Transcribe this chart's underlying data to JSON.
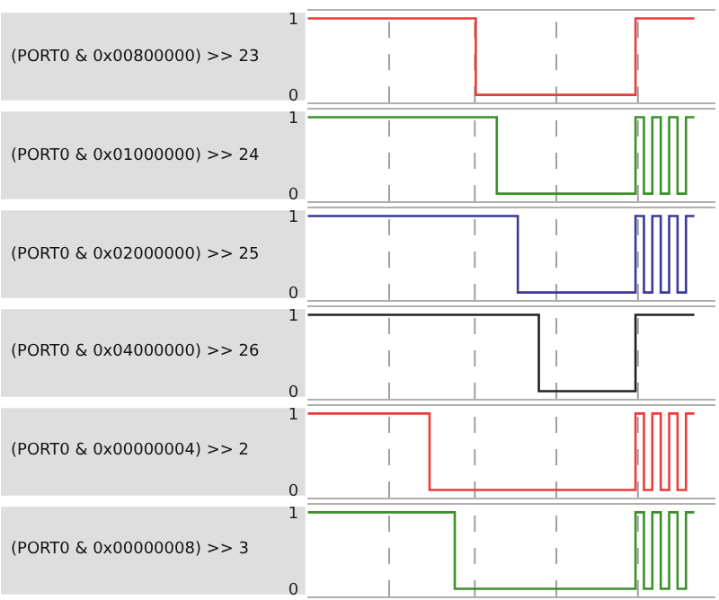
{
  "chart_data": [
    {
      "type": "step",
      "ylabel": "(PORT0 & 0x00800000) >> 23",
      "ylim": [
        -0.1,
        1.1
      ],
      "yticks": [
        0,
        1
      ],
      "tick_labels": "y",
      "line_style": "solid",
      "categories": [
        null,
        null,
        null,
        null,
        null,
        null,
        null,
        null,
        null,
        null,
        null,
        null,
        null,
        null,
        null,
        null,
        null,
        null,
        null,
        null,
        null,
        null,
        null,
        null,
        null,
        null,
        null,
        null,
        null,
        null,
        null,
        null,
        null,
        null,
        null,
        null,
        null,
        null,
        null,
        null,
        null,
        null,
        null,
        null,
        null,
        null,
        null,
        null,
        null,
        null,
        null,
        null,
        null,
        null,
        null,
        null,
        null,
        null,
        null,
        null,
        null,
        null,
        null,
        null,
        null,
        null,
        null,
        null,
        null,
        null,
        null,
        null,
        null,
        null,
        null,
        null,
        null,
        null,
        null,
        null,
        null,
        null,
        null,
        null,
        null,
        null,
        null,
        null,
        null,
        null,
        null,
        null,
        null
      ],
      "series": [
        {
          "color": "#ee3a3a",
          "values": [
            1,
            1,
            1,
            1,
            1,
            1,
            1,
            1,
            1,
            1,
            1,
            1,
            1,
            1,
            1,
            1,
            1,
            1,
            1,
            1,
            1,
            1,
            1,
            1,
            1,
            1,
            1,
            1,
            1,
            1,
            1,
            1,
            1,
            1,
            1,
            1,
            1,
            1,
            1,
            1,
            0,
            0,
            0,
            0,
            0,
            0,
            0,
            0,
            0,
            0,
            0,
            0,
            0,
            0,
            0,
            0,
            0,
            0,
            0,
            0,
            0,
            0,
            0,
            0,
            0,
            0,
            0,
            0,
            0,
            0,
            0,
            0,
            0,
            0,
            0,
            0,
            0,
            0,
            1,
            1,
            1,
            1,
            1,
            1,
            1,
            1,
            1,
            1,
            1,
            1,
            1,
            1,
            1
          ]
        }
      ]
    },
    {
      "type": "step",
      "ylabel": "(PORT0 & 0x01000000) >> 24",
      "ylim": [
        -0.1,
        1.1
      ],
      "yticks": [
        0,
        1
      ],
      "tick_labels": "y",
      "line_style": "solid",
      "categories": [
        null,
        null,
        null,
        null,
        null,
        null,
        null,
        null,
        null,
        null,
        null,
        null,
        null,
        null,
        null,
        null,
        null,
        null,
        null,
        null,
        null,
        null,
        null,
        null,
        null,
        null,
        null,
        null,
        null,
        null,
        null,
        null,
        null,
        null,
        null,
        null,
        null,
        null,
        null,
        null,
        null,
        null,
        null,
        null,
        null,
        null,
        null,
        null,
        null,
        null,
        null,
        null,
        null,
        null,
        null,
        null,
        null,
        null,
        null,
        null,
        null,
        null,
        null,
        null,
        null,
        null,
        null,
        null,
        null,
        null,
        null,
        null,
        null,
        null,
        null,
        null,
        null,
        null,
        null,
        null,
        null,
        null,
        null,
        null,
        null,
        null,
        null,
        null,
        null,
        null,
        null,
        null,
        null
      ],
      "series": [
        {
          "color": "#3a8f2a",
          "values": [
            1,
            1,
            1,
            1,
            1,
            1,
            1,
            1,
            1,
            1,
            1,
            1,
            1,
            1,
            1,
            1,
            1,
            1,
            1,
            1,
            1,
            1,
            1,
            1,
            1,
            1,
            1,
            1,
            1,
            1,
            1,
            1,
            1,
            1,
            1,
            1,
            1,
            1,
            1,
            1,
            1,
            1,
            1,
            1,
            1,
            0,
            0,
            0,
            0,
            0,
            0,
            0,
            0,
            0,
            0,
            0,
            0,
            0,
            0,
            0,
            0,
            0,
            0,
            0,
            0,
            0,
            0,
            0,
            0,
            0,
            0,
            0,
            0,
            0,
            0,
            0,
            0,
            0,
            1,
            1,
            0,
            0,
            1,
            1,
            0,
            0,
            1,
            1,
            0,
            0,
            1,
            1,
            1
          ]
        }
      ]
    },
    {
      "type": "step",
      "ylabel": "(PORT0 & 0x02000000) >> 25",
      "ylim": [
        -0.1,
        1.1
      ],
      "yticks": [
        0,
        1
      ],
      "tick_labels": "y",
      "line_style": "solid",
      "categories": [
        null,
        null,
        null,
        null,
        null,
        null,
        null,
        null,
        null,
        null,
        null,
        null,
        null,
        null,
        null,
        null,
        null,
        null,
        null,
        null,
        null,
        null,
        null,
        null,
        null,
        null,
        null,
        null,
        null,
        null,
        null,
        null,
        null,
        null,
        null,
        null,
        null,
        null,
        null,
        null,
        null,
        null,
        null,
        null,
        null,
        null,
        null,
        null,
        null,
        null,
        null,
        null,
        null,
        null,
        null,
        null,
        null,
        null,
        null,
        null,
        null,
        null,
        null,
        null,
        null,
        null,
        null,
        null,
        null,
        null,
        null,
        null,
        null,
        null,
        null,
        null,
        null,
        null,
        null,
        null,
        null,
        null,
        null,
        null,
        null,
        null,
        null,
        null,
        null,
        null,
        null,
        null,
        null
      ],
      "series": [
        {
          "color": "#3a3a9a",
          "values": [
            1,
            1,
            1,
            1,
            1,
            1,
            1,
            1,
            1,
            1,
            1,
            1,
            1,
            1,
            1,
            1,
            1,
            1,
            1,
            1,
            1,
            1,
            1,
            1,
            1,
            1,
            1,
            1,
            1,
            1,
            1,
            1,
            1,
            1,
            1,
            1,
            1,
            1,
            1,
            1,
            1,
            1,
            1,
            1,
            1,
            1,
            1,
            1,
            1,
            1,
            0,
            0,
            0,
            0,
            0,
            0,
            0,
            0,
            0,
            0,
            0,
            0,
            0,
            0,
            0,
            0,
            0,
            0,
            0,
            0,
            0,
            0,
            0,
            0,
            0,
            0,
            0,
            0,
            1,
            1,
            0,
            0,
            1,
            1,
            0,
            0,
            1,
            1,
            0,
            0,
            1,
            1,
            1
          ]
        }
      ]
    },
    {
      "type": "step",
      "ylabel": "(PORT0 & 0x04000000) >> 26",
      "ylim": [
        -0.1,
        1.1
      ],
      "yticks": [
        0,
        1
      ],
      "tick_labels": "y",
      "line_style": "solid",
      "categories": [
        null,
        null,
        null,
        null,
        null,
        null,
        null,
        null,
        null,
        null,
        null,
        null,
        null,
        null,
        null,
        null,
        null,
        null,
        null,
        null,
        null,
        null,
        null,
        null,
        null,
        null,
        null,
        null,
        null,
        null,
        null,
        null,
        null,
        null,
        null,
        null,
        null,
        null,
        null,
        null,
        null,
        null,
        null,
        null,
        null,
        null,
        null,
        null,
        null,
        null,
        null,
        null,
        null,
        null,
        null,
        null,
        null,
        null,
        null,
        null,
        null,
        null,
        null,
        null,
        null,
        null,
        null,
        null,
        null,
        null,
        null,
        null,
        null,
        null,
        null,
        null,
        null,
        null,
        null,
        null,
        null,
        null,
        null,
        null,
        null,
        null,
        null,
        null,
        null,
        null,
        null,
        null,
        null
      ],
      "series": [
        {
          "color": "#222222",
          "values": [
            1,
            1,
            1,
            1,
            1,
            1,
            1,
            1,
            1,
            1,
            1,
            1,
            1,
            1,
            1,
            1,
            1,
            1,
            1,
            1,
            1,
            1,
            1,
            1,
            1,
            1,
            1,
            1,
            1,
            1,
            1,
            1,
            1,
            1,
            1,
            1,
            1,
            1,
            1,
            1,
            1,
            1,
            1,
            1,
            1,
            1,
            1,
            1,
            1,
            1,
            1,
            1,
            1,
            1,
            1,
            0,
            0,
            0,
            0,
            0,
            0,
            0,
            0,
            0,
            0,
            0,
            0,
            0,
            0,
            0,
            0,
            0,
            0,
            0,
            0,
            0,
            0,
            0,
            1,
            1,
            1,
            1,
            1,
            1,
            1,
            1,
            1,
            1,
            1,
            1,
            1,
            1,
            1
          ]
        }
      ]
    },
    {
      "type": "step",
      "ylabel": "(PORT0 & 0x00000004) >> 2",
      "ylim": [
        -0.1,
        1.1
      ],
      "yticks": [
        0,
        1
      ],
      "tick_labels": "y",
      "line_style": "solid",
      "categories": [
        null,
        null,
        null,
        null,
        null,
        null,
        null,
        null,
        null,
        null,
        null,
        null,
        null,
        null,
        null,
        null,
        null,
        null,
        null,
        null,
        null,
        null,
        null,
        null,
        null,
        null,
        null,
        null,
        null,
        null,
        null,
        null,
        null,
        null,
        null,
        null,
        null,
        null,
        null,
        null,
        null,
        null,
        null,
        null,
        null,
        null,
        null,
        null,
        null,
        null,
        null,
        null,
        null,
        null,
        null,
        null,
        null,
        null,
        null,
        null,
        null,
        null,
        null,
        null,
        null,
        null,
        null,
        null,
        null,
        null,
        null,
        null,
        null,
        null,
        null,
        null,
        null,
        null,
        null,
        null,
        null,
        null,
        null,
        null,
        null,
        null,
        null,
        null,
        null,
        null,
        null,
        null,
        null
      ],
      "series": [
        {
          "color": "#ee3a3a",
          "values": [
            1,
            1,
            1,
            1,
            1,
            1,
            1,
            1,
            1,
            1,
            1,
            1,
            1,
            1,
            1,
            1,
            1,
            1,
            1,
            1,
            1,
            1,
            1,
            1,
            1,
            1,
            1,
            1,
            1,
            0,
            0,
            0,
            0,
            0,
            0,
            0,
            0,
            0,
            0,
            0,
            0,
            0,
            0,
            0,
            0,
            0,
            0,
            0,
            0,
            0,
            0,
            0,
            0,
            0,
            0,
            0,
            0,
            0,
            0,
            0,
            0,
            0,
            0,
            0,
            0,
            0,
            0,
            0,
            0,
            0,
            0,
            0,
            0,
            0,
            0,
            0,
            0,
            0,
            1,
            1,
            0,
            0,
            1,
            1,
            0,
            0,
            1,
            1,
            0,
            0,
            1,
            1,
            1
          ]
        }
      ]
    },
    {
      "type": "step",
      "ylabel": "(PORT0 & 0x00000008) >> 3",
      "ylim": [
        -0.1,
        1.1
      ],
      "yticks": [
        0,
        1
      ],
      "tick_labels": "y",
      "line_style": "solid",
      "categories": [
        null,
        null,
        null,
        null,
        null,
        null,
        null,
        null,
        null,
        null,
        null,
        null,
        null,
        null,
        null,
        null,
        null,
        null,
        null,
        null,
        null,
        null,
        null,
        null,
        null,
        null,
        null,
        null,
        null,
        null,
        null,
        null,
        null,
        null,
        null,
        null,
        null,
        null,
        null,
        null,
        null,
        null,
        null,
        null,
        null,
        null,
        null,
        null,
        null,
        null,
        null,
        null,
        null,
        null,
        null,
        null,
        null,
        null,
        null,
        null,
        null,
        null,
        null,
        null,
        null,
        null,
        null,
        null,
        null,
        null,
        null,
        null,
        null,
        null,
        null,
        null,
        null,
        null,
        null,
        null,
        null,
        null,
        null,
        null,
        null,
        null,
        null,
        null,
        null,
        null,
        null,
        null,
        null
      ],
      "series": [
        {
          "color": "#3a8f2a",
          "values": [
            1,
            1,
            1,
            1,
            1,
            1,
            1,
            1,
            1,
            1,
            1,
            1,
            1,
            1,
            1,
            1,
            1,
            1,
            1,
            1,
            1,
            1,
            1,
            1,
            1,
            1,
            1,
            1,
            1,
            1,
            1,
            1,
            1,
            1,
            1,
            0,
            0,
            0,
            0,
            0,
            0,
            0,
            0,
            0,
            0,
            0,
            0,
            0,
            0,
            0,
            0,
            0,
            0,
            0,
            0,
            0,
            0,
            0,
            0,
            0,
            0,
            0,
            0,
            0,
            0,
            0,
            0,
            0,
            0,
            0,
            0,
            0,
            0,
            0,
            0,
            0,
            0,
            0,
            1,
            1,
            0,
            0,
            1,
            1,
            0,
            0,
            1,
            1,
            0,
            0,
            1,
            1,
            1
          ]
        }
      ]
    }
  ]
}
